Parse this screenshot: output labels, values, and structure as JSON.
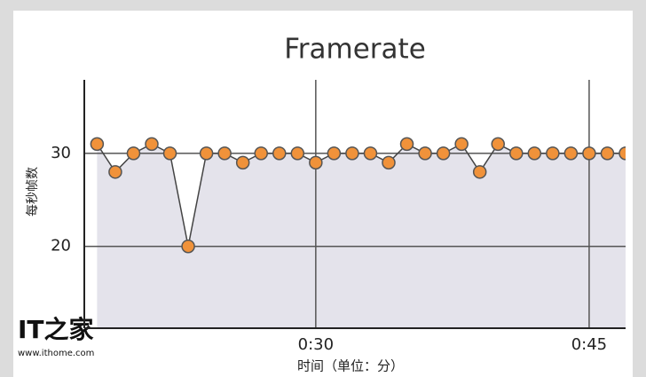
{
  "chart_data": {
    "type": "line",
    "title": "Framerate",
    "x_label": "时间（单位：分）",
    "y_label": "每秒帧数",
    "x": [
      18,
      19,
      20,
      21,
      22,
      23,
      24,
      25,
      26,
      27,
      28,
      29,
      30,
      31,
      32,
      33,
      34,
      35,
      36,
      37,
      38,
      39,
      40,
      41,
      42,
      43,
      44,
      45,
      46,
      47
    ],
    "series": [
      {
        "name": "Framerate",
        "color": "#f0923a",
        "values": [
          31,
          28,
          30,
          31,
          30,
          20,
          30,
          30,
          29,
          30,
          30,
          30,
          29,
          30,
          30,
          30,
          29,
          31,
          30,
          30,
          31,
          28,
          31,
          30,
          30,
          30,
          30,
          30,
          30,
          30
        ]
      }
    ],
    "xlim": [
      17.3,
      47
    ],
    "xticks": [
      {
        "value": 30,
        "label": "0:30"
      },
      {
        "value": 45,
        "label": "0:45"
      }
    ],
    "ylim": [
      11.2,
      37.9
    ],
    "yticks": [
      20,
      30
    ],
    "grid": true,
    "area": true
  },
  "watermark": {
    "logo": "IT之家",
    "url": "www.ithome.com"
  }
}
